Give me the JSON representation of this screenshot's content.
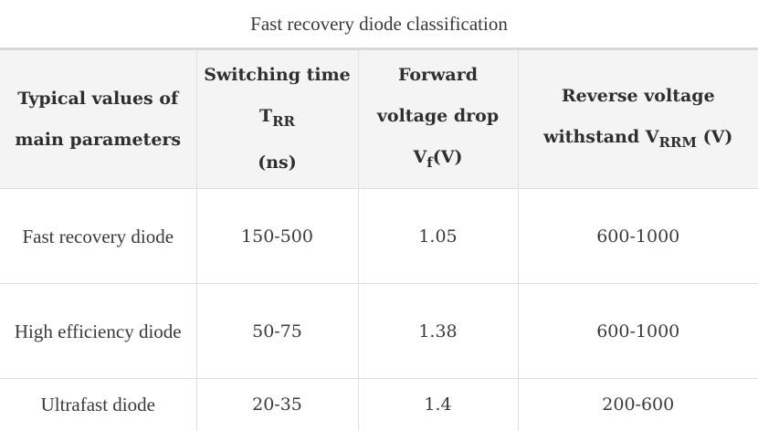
{
  "caption": "Fast recovery diode classification",
  "header": {
    "col1": "Typical values of main parameters",
    "col2_main": "Switching time T",
    "col2_sub": "RR",
    "col2_unit": "(ns)",
    "col3_main": "Forward voltage drop V",
    "col3_sub": "f",
    "col3_unit": "(V)",
    "col4_main": "Reverse voltage withstand V",
    "col4_sub": "RRM",
    "col4_unit": " (V)"
  },
  "rows": [
    {
      "type": "Fast recovery diode",
      "switching_time": "150-500",
      "forward_voltage": "1.05",
      "reverse_voltage": "600-1000"
    },
    {
      "type": "High efficiency diode",
      "switching_time": "50-75",
      "forward_voltage": "1.38",
      "reverse_voltage": "600-1000"
    },
    {
      "type": "Ultrafast diode",
      "switching_time": "20-35",
      "forward_voltage": "1.4",
      "reverse_voltage": "200-600"
    }
  ]
}
